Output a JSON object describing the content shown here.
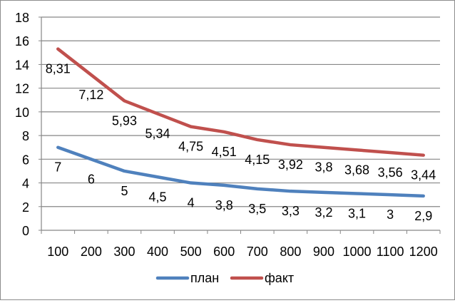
{
  "chart_data": {
    "type": "line",
    "categories": [
      "100",
      "200",
      "300",
      "400",
      "500",
      "600",
      "700",
      "800",
      "900",
      "1000",
      "1100",
      "1200"
    ],
    "ylim": [
      0,
      18
    ],
    "yticks": [
      "0",
      "2",
      "4",
      "6",
      "8",
      "10",
      "12",
      "14",
      "16",
      "18"
    ],
    "grid": true,
    "legend_position": "bottom",
    "series": [
      {
        "name": "план",
        "color": "#4f81bd",
        "values": [
          7,
          6,
          5,
          4.5,
          4,
          3.8,
          3.5,
          3.3,
          3.2,
          3.1,
          3,
          2.9
        ],
        "labels": [
          "7",
          "6",
          "5",
          "4,5",
          "4",
          "3,8",
          "3,5",
          "3,3",
          "3,2",
          "3,1",
          "3",
          "2,9"
        ]
      },
      {
        "name": "факт",
        "color": "#c0504d",
        "values": [
          15.31,
          13.12,
          10.93,
          9.84,
          8.75,
          8.31,
          7.65,
          7.22,
          7.0,
          6.78,
          6.56,
          6.34
        ],
        "labels": [
          "8,31",
          "7,12",
          "5,93",
          "5,34",
          "4,75",
          "4,51",
          "4,15",
          "3,92",
          "3,8",
          "3,68",
          "3,56",
          "3,44"
        ]
      }
    ]
  }
}
